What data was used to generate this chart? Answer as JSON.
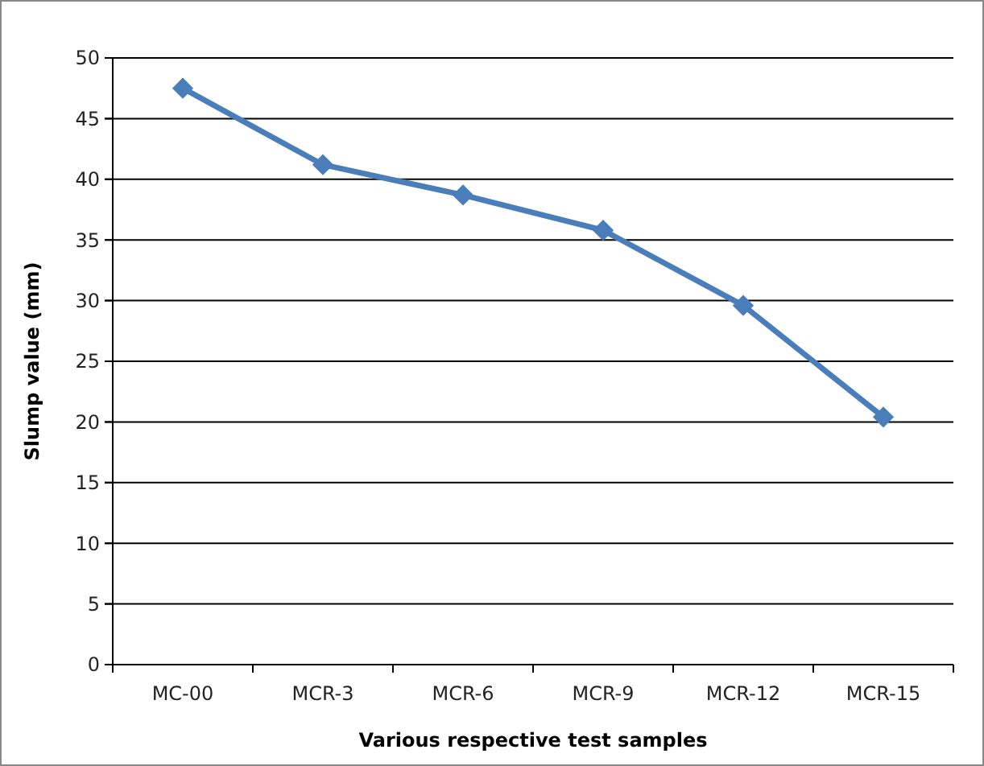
{
  "chart_data": {
    "type": "line",
    "xlabel": "Various respective test samples",
    "ylabel": "Slump value (mm)",
    "categories": [
      "MC-00",
      "MCR-3",
      "MCR-6",
      "MCR-9",
      "MCR-12",
      "MCR-15"
    ],
    "series": [
      {
        "color": "#4a7ebb",
        "values": [
          47.5,
          41.2,
          38.7,
          35.8,
          29.6,
          20.4
        ]
      }
    ],
    "ylim": [
      0,
      50
    ],
    "yticks": [
      0,
      5,
      10,
      15,
      20,
      25,
      30,
      35,
      40,
      45,
      50
    ],
    "grid": "y",
    "marker": "diamond",
    "line_style": "solid"
  }
}
